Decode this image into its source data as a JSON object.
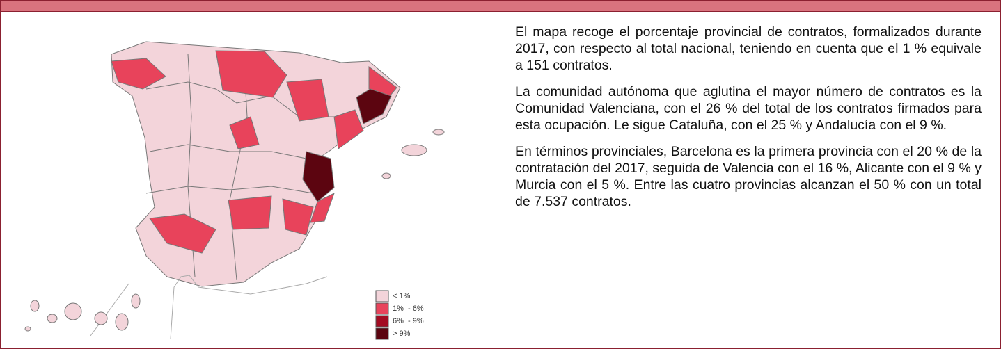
{
  "legend": {
    "items": [
      {
        "label": "< 1%",
        "color": "#f3d4da"
      },
      {
        "label": "1%  - 6%",
        "color": "#e8435b"
      },
      {
        "label": "6%  - 9%",
        "color": "#a30b22"
      },
      {
        "label": "> 9%",
        "color": "#5c0510"
      }
    ]
  },
  "paragraphs": [
    "El mapa recoge el porcentaje provincial de contratos, formalizados durante 2017, con respecto al total nacional, teniendo en cuenta que el 1 % equivale a 151 contratos.",
    "La comunidad autónoma que aglutina el mayor número de contratos es la Comunidad Valenciana, con el 26 % del total de los contratos firmados para esta ocupación. Le sigue Cataluña, con el 25 % y Andalucía con el 9 %.",
    "En términos provinciales, Barcelona es la primera provincia con el 20 % de la contratación del 2017, seguida de Valencia con el 16 %, Alicante con el 9 % y Murcia con el 5 %. Entre las cuatro provincias alcanzan el 50 % con un total de 7.537 contratos."
  ]
}
